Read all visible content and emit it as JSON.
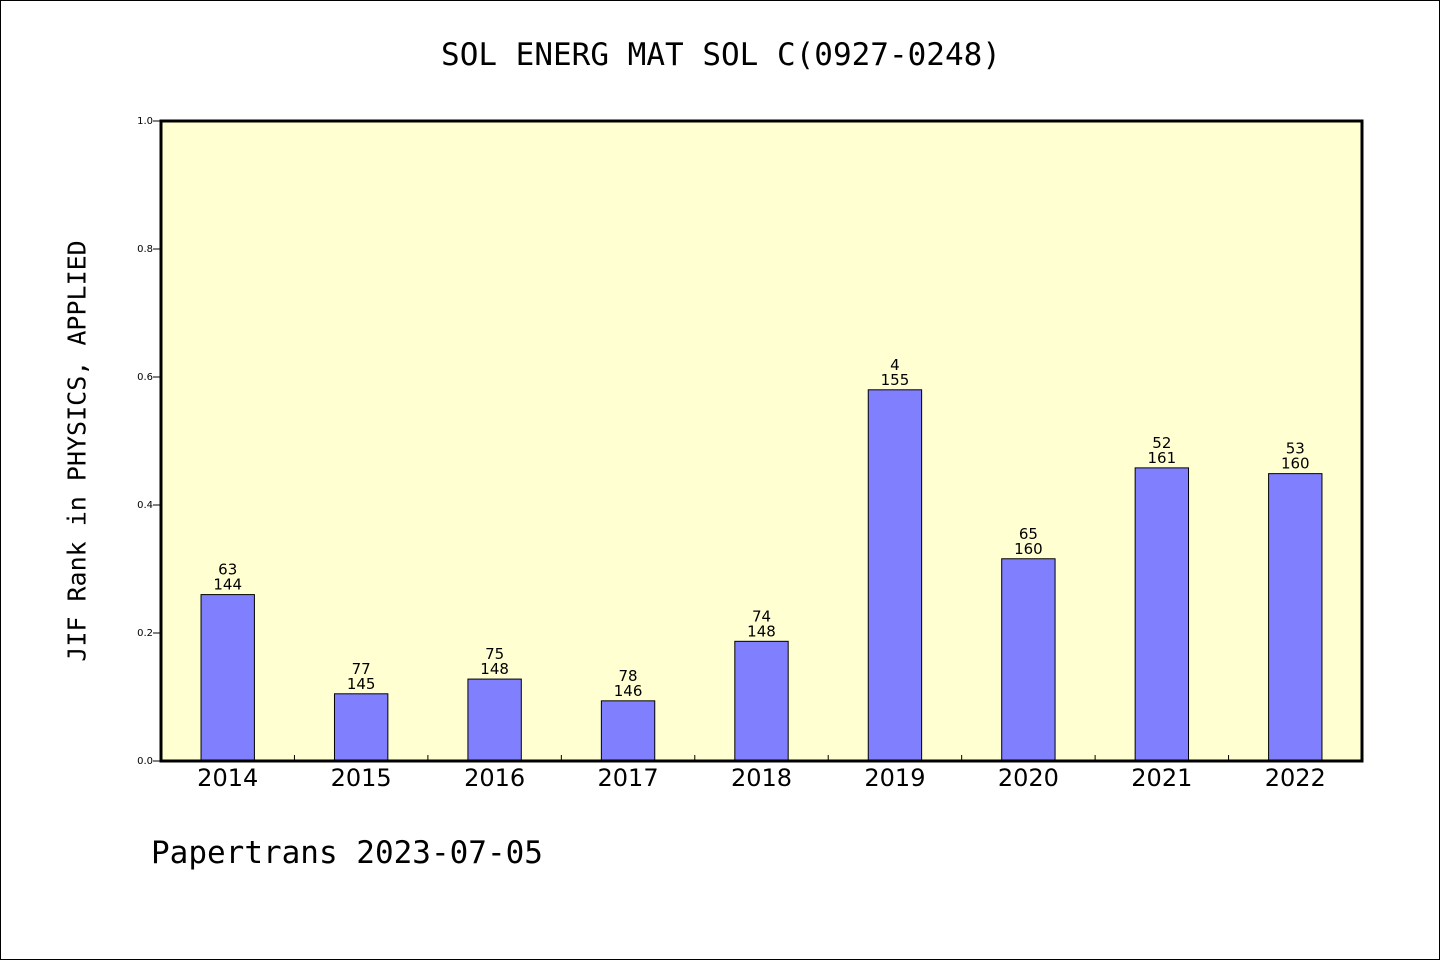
{
  "footer": {
    "credit": "Papertrans 2023-07-05"
  },
  "chart_data": {
    "type": "bar",
    "title": "SOL ENERG MAT SOL C(0927-0248)",
    "ylabel": "JIF Rank in PHYSICS, APPLIED",
    "xlabel": "",
    "ylim": [
      0,
      1.0
    ],
    "yticks": [
      "0.0",
      "0.2",
      "0.4",
      "0.6",
      "0.8",
      "1.0"
    ],
    "categories": [
      "2014",
      "2015",
      "2016",
      "2017",
      "2018",
      "2019",
      "2020",
      "2021",
      "2022"
    ],
    "values": [
      0.26,
      0.105,
      0.128,
      0.094,
      0.187,
      0.58,
      0.316,
      0.458,
      0.449
    ],
    "rank": [
      "63",
      "77",
      "75",
      "78",
      "74",
      "4",
      "65",
      "52",
      "53"
    ],
    "total": [
      "144",
      "145",
      "148",
      "146",
      "148",
      "155",
      "160",
      "161",
      "160"
    ],
    "grid": false,
    "legend": "none",
    "colors": {
      "bar": "#8080ff",
      "plot_background": "#ffffd2",
      "axis": "#000000"
    }
  }
}
